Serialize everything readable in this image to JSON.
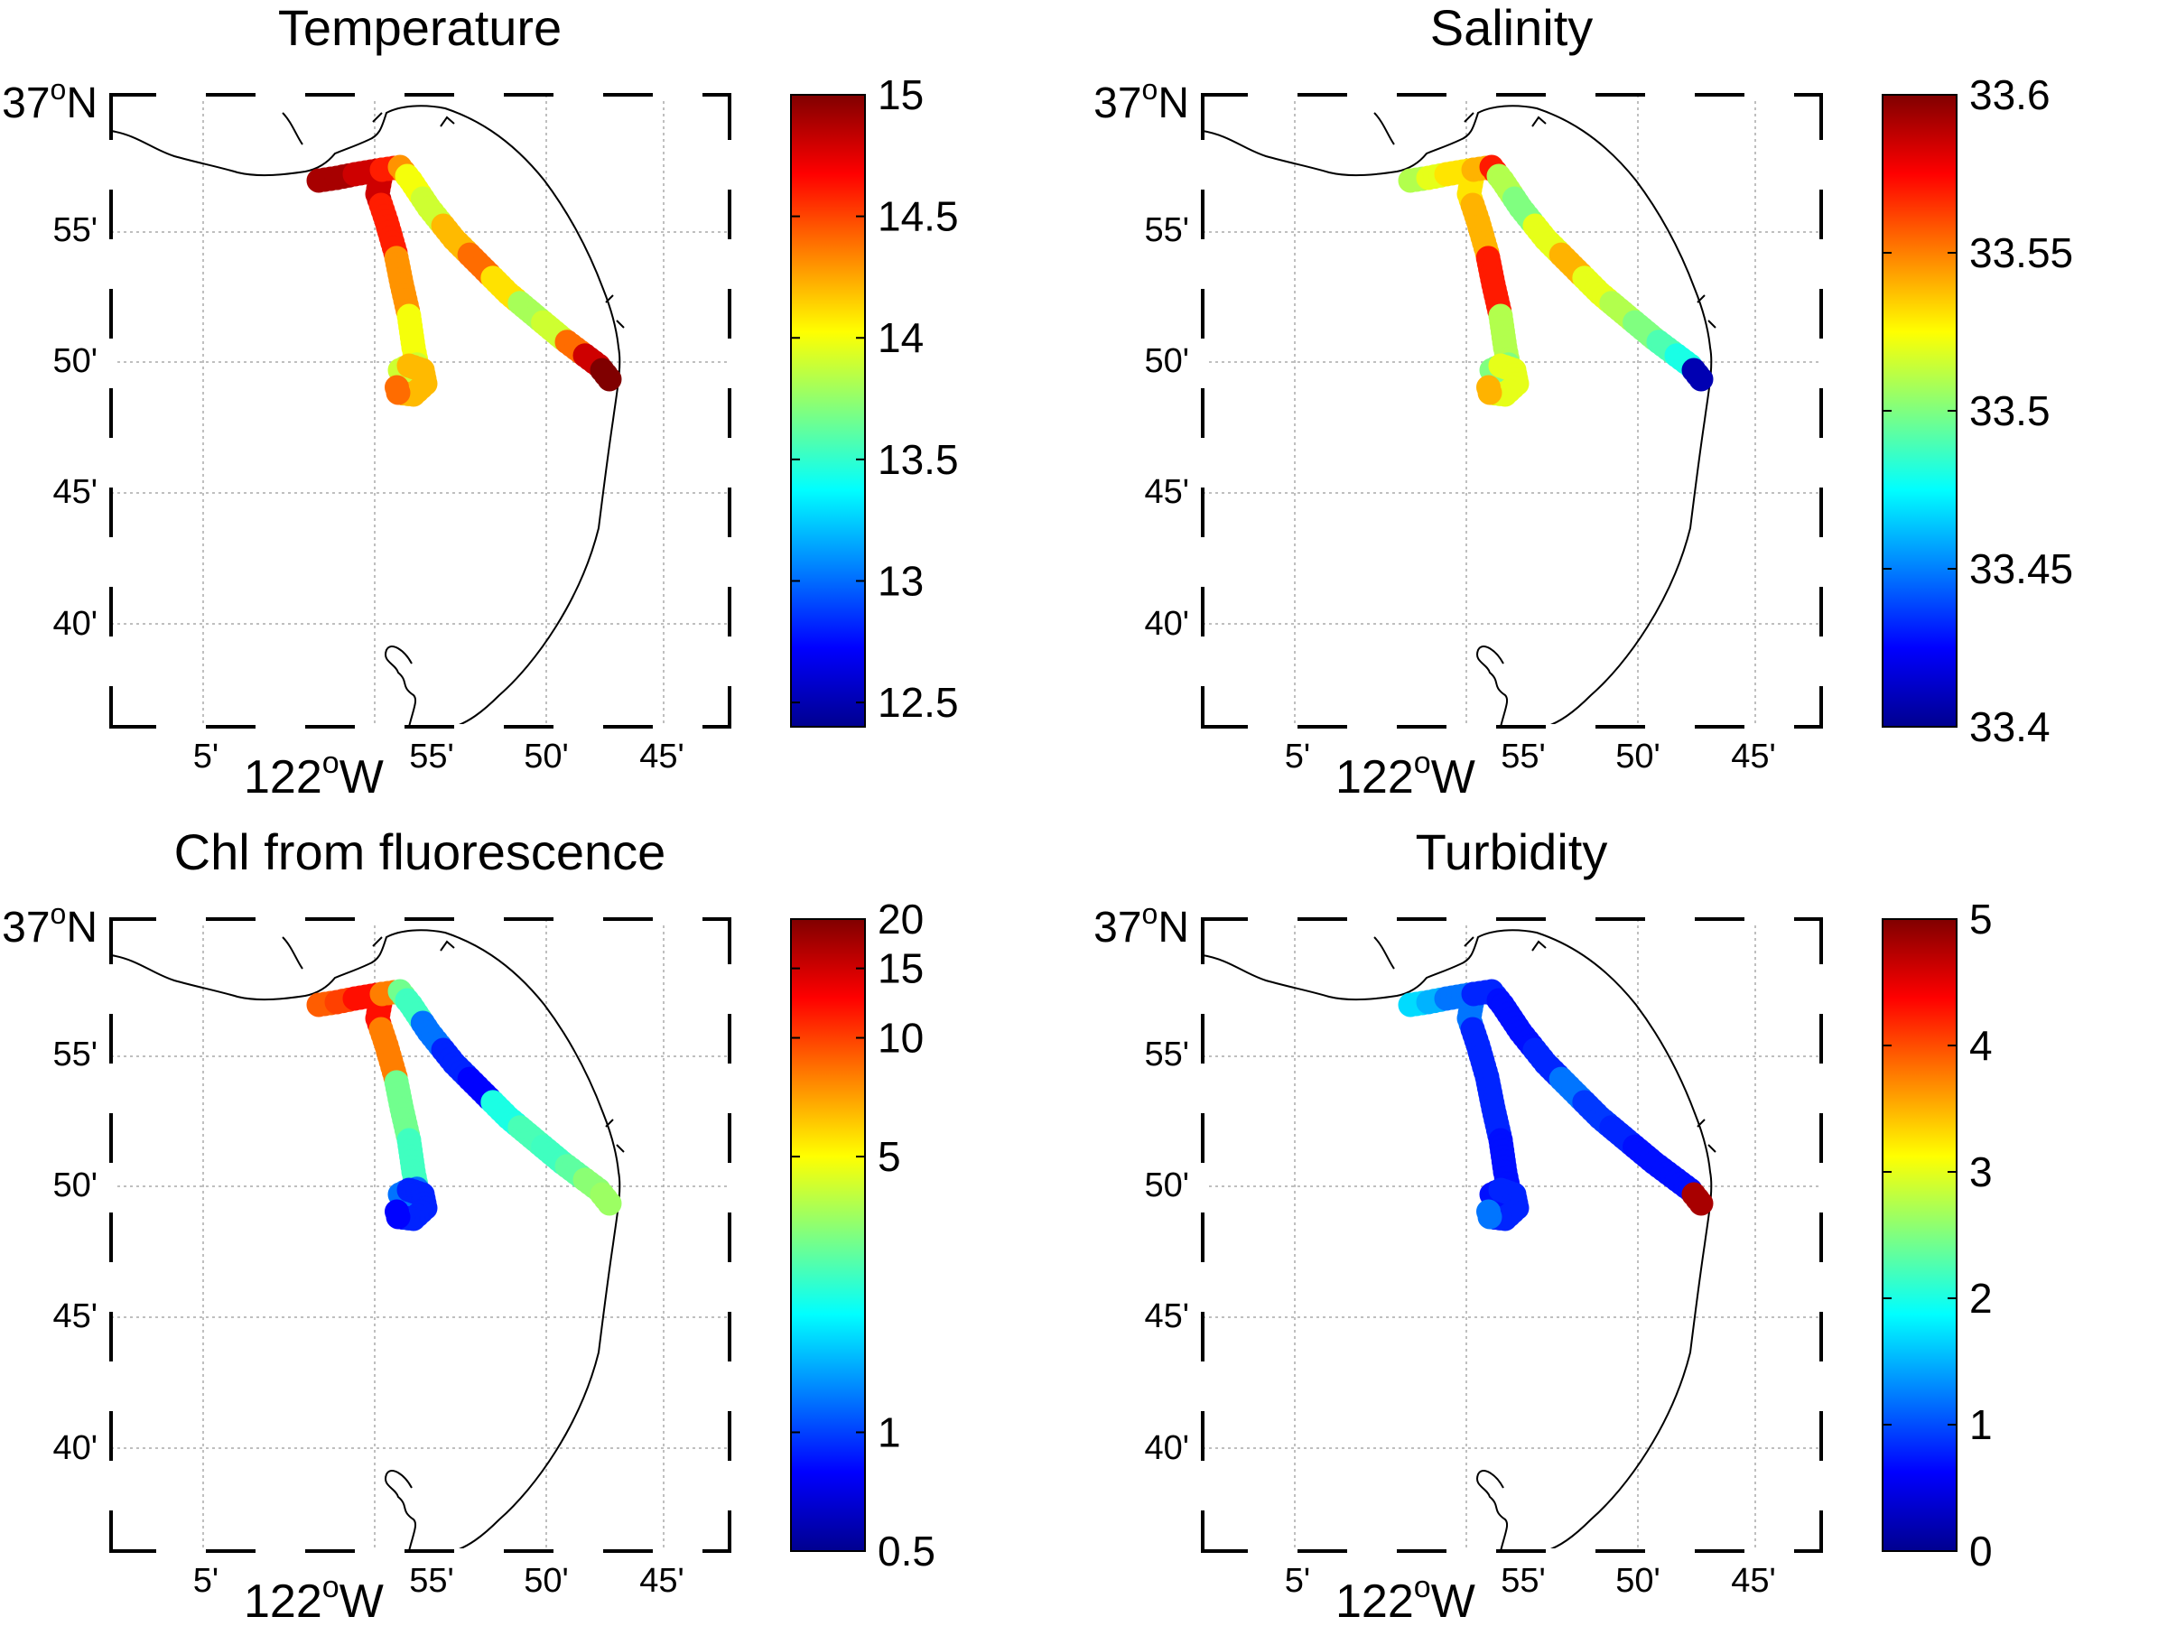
{
  "figure": {
    "lon_labels": [
      "5'",
      "55'",
      "50'",
      "45'"
    ],
    "lon_main_label": "122",
    "lon_main_suffix": "W",
    "lat_labels": [
      "55'",
      "50'",
      "45'",
      "40'"
    ],
    "lat_main_label": "37",
    "lat_main_suffix": "N",
    "degree_symbol": "o"
  },
  "chart_data": [
    {
      "type": "scatter",
      "title": "Temperature",
      "colormap": "jet",
      "colorbar_ticks": [
        "15",
        "14.5",
        "14",
        "13.5",
        "13",
        "12.5"
      ],
      "colorbar_range": [
        12.4,
        15.0
      ],
      "track_values": [
        14.9,
        14.9,
        14.8,
        14.6,
        14.3,
        14.0,
        13.9,
        14.2,
        14.4,
        14.1,
        13.8,
        13.9,
        14.4,
        14.8,
        15.0
      ]
    },
    {
      "type": "scatter",
      "title": "Salinity",
      "colormap": "jet",
      "colorbar_ticks": [
        "33.6",
        "33.55",
        "33.5",
        "33.45",
        "33.4"
      ],
      "colorbar_range": [
        33.4,
        33.6
      ],
      "track_values": [
        33.51,
        33.52,
        33.53,
        33.54,
        33.57,
        33.51,
        33.5,
        33.52,
        33.54,
        33.52,
        33.51,
        33.5,
        33.49,
        33.48,
        33.41
      ]
    },
    {
      "type": "scatter",
      "title": "Chl from fluorescence",
      "colormap": "jet",
      "colorbar_scale": "log",
      "colorbar_ticks": [
        "20",
        "15",
        "10",
        "5",
        "1",
        "0.5"
      ],
      "colorbar_range": [
        0.5,
        20
      ],
      "track_values": [
        9,
        10,
        12,
        8,
        3,
        2.5,
        1.2,
        0.9,
        0.8,
        2.2,
        2.6,
        2.5,
        2.8,
        3.3,
        3.5
      ]
    },
    {
      "type": "scatter",
      "title": "Turbidity",
      "colormap": "jet",
      "colorbar_ticks": [
        "5",
        "4",
        "3",
        "2",
        "1",
        "0"
      ],
      "colorbar_range": [
        0,
        5
      ],
      "track_values": [
        1.7,
        1.5,
        1.2,
        0.8,
        0.8,
        0.7,
        0.7,
        0.8,
        1.2,
        0.9,
        0.8,
        0.7,
        0.7,
        0.7,
        4.8
      ]
    }
  ]
}
